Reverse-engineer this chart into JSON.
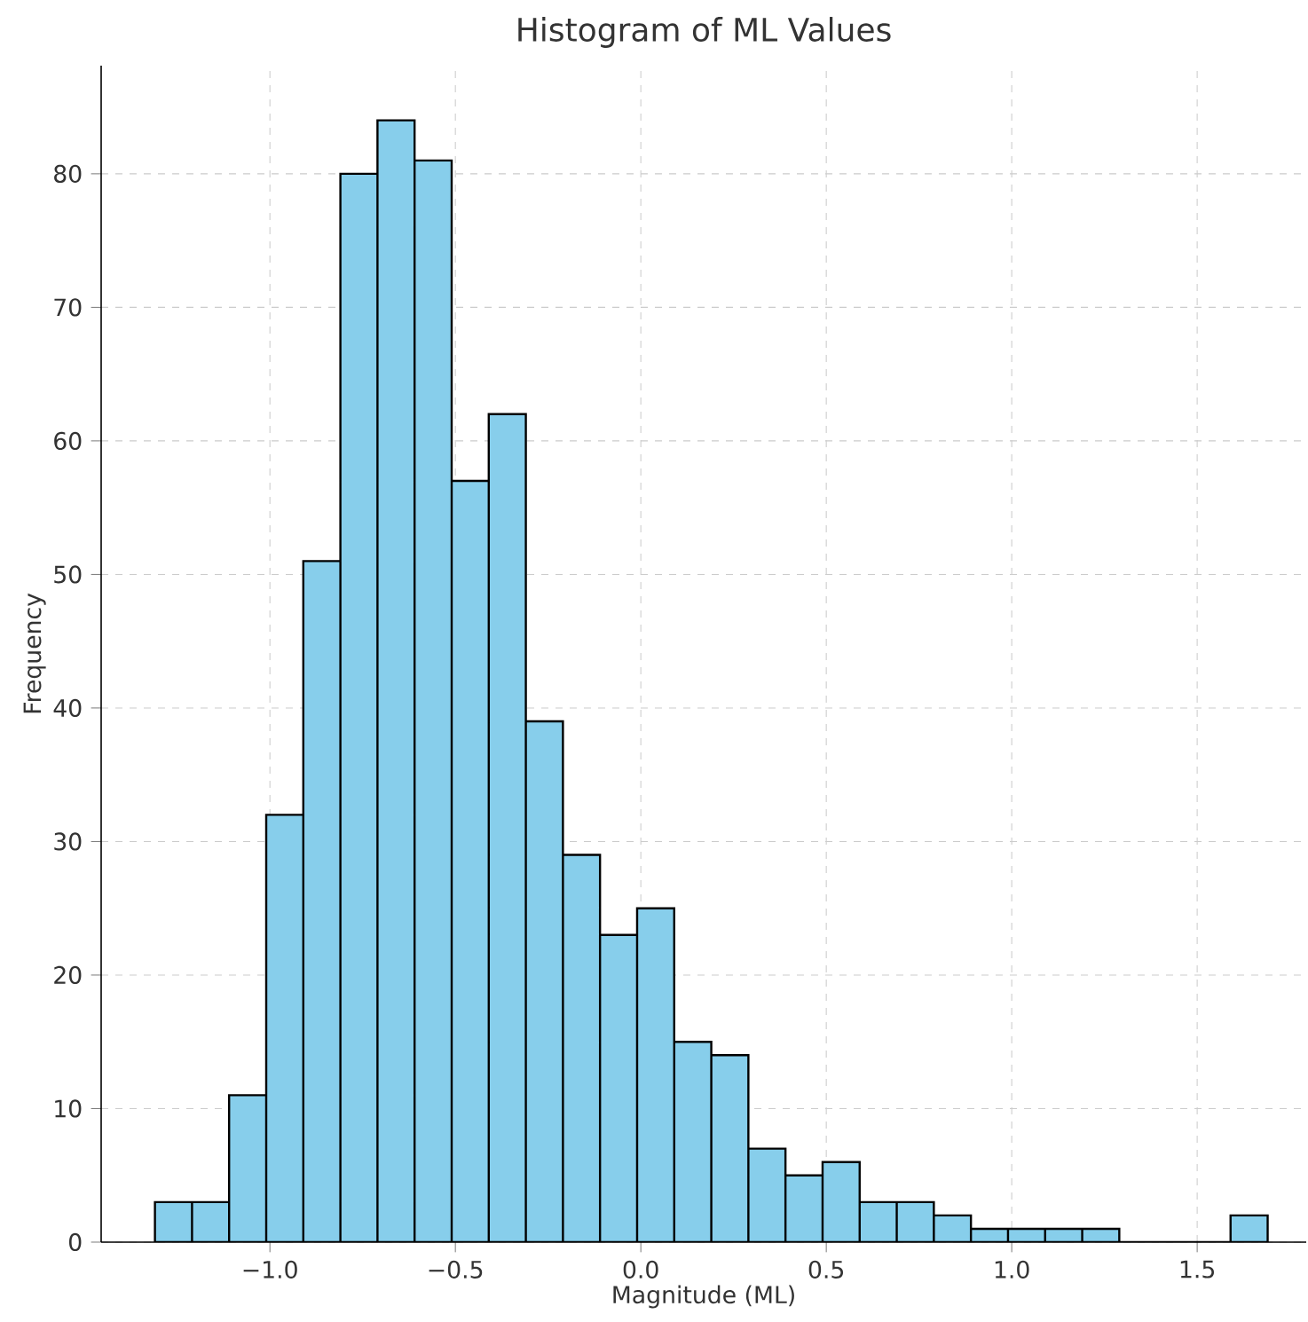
{
  "chart_data": {
    "type": "histogram",
    "title": "Histogram of ML Values",
    "xlabel": "Magnitude (ML)",
    "ylabel": "Frequency",
    "bins": [
      -1.31,
      -1.21,
      -1.11,
      -1.01,
      -0.91,
      -0.81,
      -0.71,
      -0.61,
      -0.51,
      -0.41,
      -0.31,
      -0.21,
      -0.11,
      -0.01,
      0.09,
      0.19,
      0.29,
      0.39,
      0.49,
      0.59,
      0.69,
      0.79,
      0.89,
      0.99,
      1.09,
      1.19,
      1.29,
      1.39,
      1.49,
      1.59,
      1.69
    ],
    "values": [
      3,
      3,
      11,
      32,
      51,
      80,
      84,
      81,
      57,
      62,
      39,
      29,
      23,
      25,
      15,
      14,
      7,
      5,
      6,
      3,
      3,
      2,
      1,
      1,
      1,
      1,
      0,
      0,
      0,
      2
    ],
    "color": "#87ceeb",
    "xlim": [
      -1.455,
      1.794
    ],
    "ylim": [
      0,
      88.1
    ],
    "xticks": [
      {
        "value": -1.0,
        "label": "−1.0"
      },
      {
        "value": -0.5,
        "label": "−0.5"
      },
      {
        "value": 0.0,
        "label": "0.0"
      },
      {
        "value": 0.5,
        "label": "0.5"
      },
      {
        "value": 1.0,
        "label": "1.0"
      },
      {
        "value": 1.5,
        "label": "1.5"
      }
    ],
    "yticks": [
      0,
      10,
      20,
      30,
      40,
      50,
      60,
      70,
      80
    ],
    "grid": true
  }
}
